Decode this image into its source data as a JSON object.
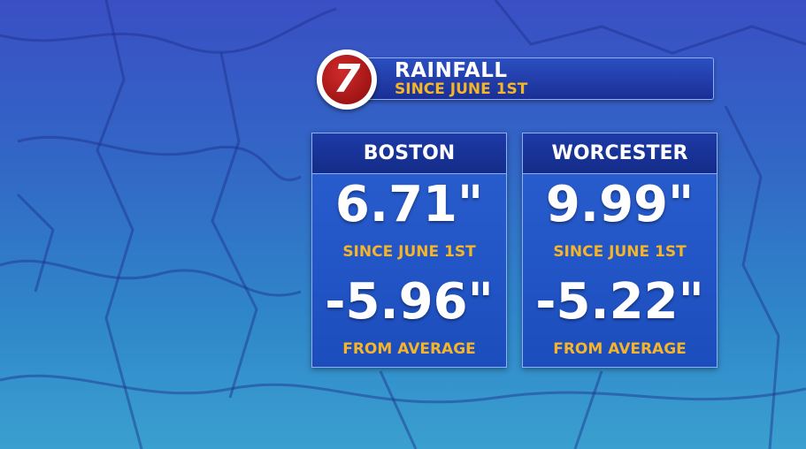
{
  "header": {
    "logo": "7",
    "title": "RAINFALL",
    "subtitle": "SINCE JUNE 1ST"
  },
  "cards": [
    {
      "city": "BOSTON",
      "total": "6.71\"",
      "total_label": "SINCE JUNE 1ST",
      "departure": "-5.96\"",
      "departure_label": "FROM AVERAGE"
    },
    {
      "city": "WORCESTER",
      "total": "9.99\"",
      "total_label": "SINCE JUNE 1ST",
      "departure": "-5.22\"",
      "departure_label": "FROM AVERAGE"
    }
  ]
}
